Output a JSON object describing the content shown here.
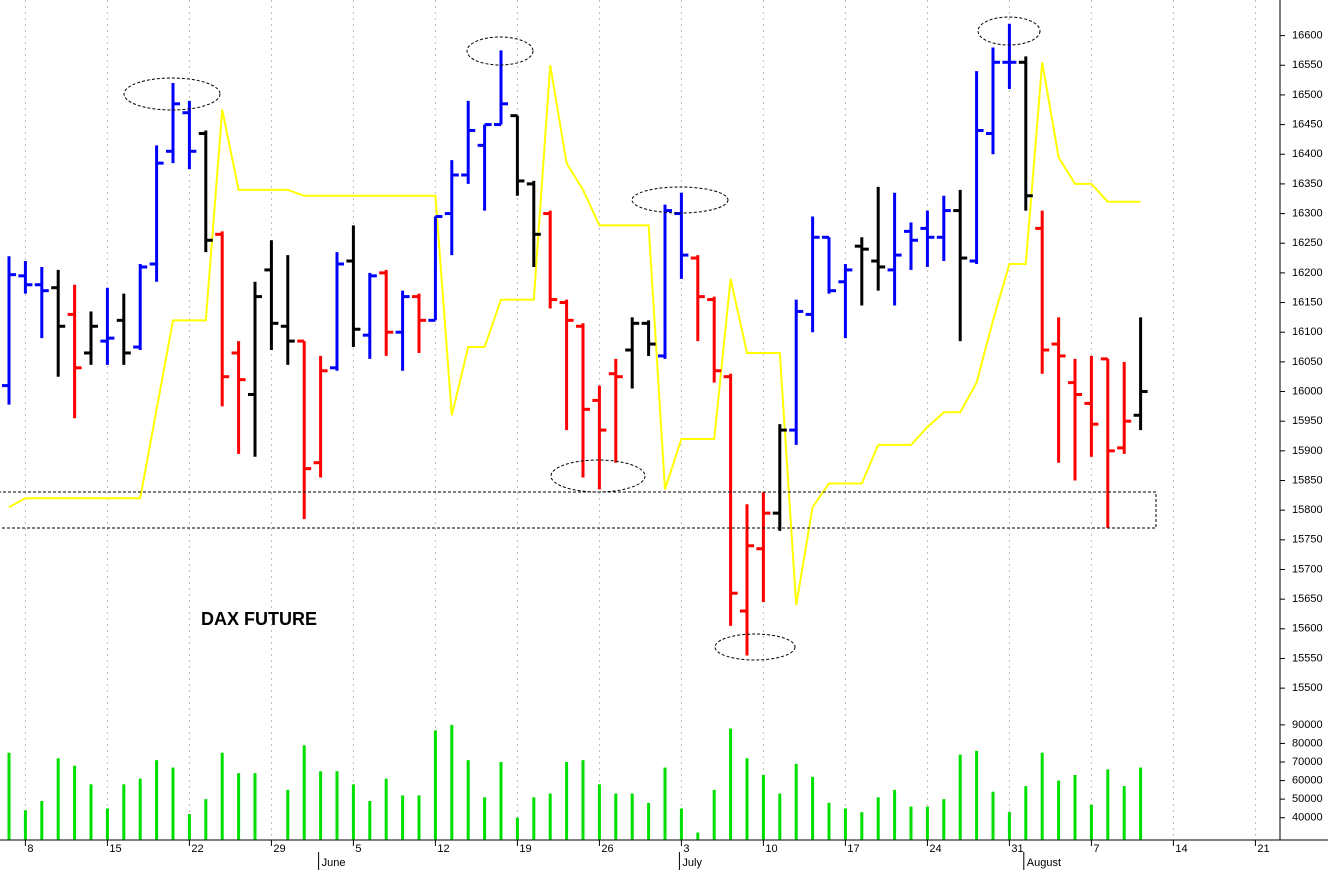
{
  "chart_data": [
    {
      "type": "ohlc",
      "annotation": "DAX FUTURE",
      "categories": [
        null,
        "8",
        null,
        null,
        null,
        null,
        "15",
        null,
        null,
        null,
        null,
        "22",
        null,
        null,
        null,
        null,
        "29",
        null,
        null,
        null,
        null,
        "5",
        null,
        null,
        null,
        null,
        "12",
        null,
        null,
        null,
        null,
        "19",
        null,
        null,
        null,
        null,
        "26",
        null,
        null,
        null,
        null,
        "3",
        null,
        null,
        null,
        null,
        "10",
        null,
        null,
        null,
        null,
        "17",
        null,
        null,
        null,
        null,
        "24",
        null,
        null,
        null,
        null,
        "31",
        null,
        null,
        null,
        null,
        "7",
        null,
        null,
        null,
        null,
        "14",
        null,
        null,
        null,
        null,
        "21"
      ],
      "month_labels": [
        null,
        null,
        null,
        null,
        null,
        null,
        null,
        null,
        null,
        null,
        null,
        null,
        null,
        null,
        null,
        null,
        null,
        null,
        null,
        "June",
        null,
        null,
        null,
        null,
        null,
        null,
        null,
        null,
        null,
        null,
        null,
        null,
        null,
        null,
        null,
        null,
        null,
        null,
        null,
        null,
        null,
        "July",
        null,
        null,
        null,
        null,
        null,
        null,
        null,
        null,
        null,
        null,
        null,
        null,
        null,
        null,
        null,
        null,
        null,
        null,
        null,
        null,
        "August",
        null,
        null,
        null,
        null,
        null,
        null,
        null,
        null,
        null,
        null,
        null,
        null,
        null,
        null
      ],
      "open": [
        16010,
        16195,
        16180,
        16175,
        16130,
        16065,
        16085,
        16120,
        16075,
        16215,
        16405,
        16470,
        16435,
        16265,
        16065,
        15995,
        16205,
        16110,
        16085,
        15880,
        16040,
        16220,
        16095,
        16200,
        16100,
        16160,
        16120,
        16300,
        16365,
        16415,
        16450,
        16465,
        16350,
        16300,
        16150,
        16110,
        15985,
        16030,
        16070,
        16115,
        16060,
        16300,
        16225,
        16155,
        16025,
        15630,
        15735,
        15795,
        15935,
        16130,
        16260,
        16185,
        16245,
        16220,
        16205,
        16270,
        16275,
        16260,
        16305,
        16220,
        16435,
        16555,
        16555,
        16275,
        16080,
        16015,
        15980,
        16055,
        15905,
        15960,
        null,
        null,
        null,
        null,
        null,
        null,
        null
      ],
      "high": [
        16228,
        16220,
        16210,
        16205,
        16180,
        16135,
        16175,
        16165,
        16215,
        16415,
        16520,
        16490,
        16440,
        16270,
        16085,
        16185,
        16255,
        16230,
        16085,
        16060,
        16235,
        16280,
        16200,
        16205,
        16170,
        16165,
        16295,
        16390,
        16490,
        16450,
        16575,
        16465,
        16355,
        16305,
        16155,
        16115,
        16010,
        16055,
        16125,
        16120,
        16315,
        16335,
        16230,
        16160,
        16030,
        15810,
        15830,
        15945,
        16155,
        16295,
        16260,
        16215,
        16260,
        16345,
        16335,
        16285,
        16305,
        16330,
        16340,
        16540,
        16580,
        16620,
        16565,
        16305,
        16125,
        16055,
        16060,
        16055,
        16050,
        16125,
        null,
        null,
        null,
        null,
        null,
        null,
        null
      ],
      "low": [
        15978,
        16165,
        16090,
        16025,
        15955,
        16045,
        16045,
        16045,
        16070,
        16185,
        16385,
        16375,
        16235,
        15975,
        15895,
        15890,
        16070,
        16045,
        15785,
        15855,
        16035,
        16075,
        16055,
        16060,
        16035,
        16065,
        16120,
        16230,
        16350,
        16305,
        16450,
        16330,
        16210,
        16140,
        15935,
        15855,
        15835,
        15880,
        16005,
        16060,
        16055,
        16190,
        16085,
        16015,
        15605,
        15555,
        15645,
        15765,
        15910,
        16100,
        16165,
        16090,
        16145,
        16170,
        16145,
        16205,
        16210,
        16220,
        16085,
        16215,
        16400,
        16510,
        16305,
        16030,
        15880,
        15850,
        15890,
        15770,
        15895,
        15935,
        null,
        null,
        null,
        null,
        null,
        null,
        null
      ],
      "close": [
        16197,
        16180,
        16170,
        16110,
        16040,
        16110,
        16090,
        16065,
        16210,
        16385,
        16485,
        16405,
        16255,
        16025,
        16020,
        16160,
        16115,
        16085,
        15870,
        16035,
        16215,
        16105,
        16195,
        16100,
        16160,
        16120,
        16295,
        16365,
        16440,
        16450,
        16485,
        16355,
        16265,
        16155,
        16120,
        15970,
        15935,
        16025,
        16115,
        16080,
        16305,
        16230,
        16160,
        16035,
        15660,
        15740,
        15795,
        15935,
        16135,
        16260,
        16170,
        16205,
        16240,
        16210,
        16230,
        16255,
        16260,
        16305,
        16225,
        16440,
        16555,
        16555,
        16330,
        16070,
        16060,
        15995,
        15945,
        15900,
        15950,
        16000,
        null,
        null,
        null,
        null,
        null,
        null,
        null
      ],
      "bar_colors": [
        "#0000ff",
        "#0000ff",
        "#0000ff",
        "#000000",
        "#ff0000",
        "#000000",
        "#0000ff",
        "#000000",
        "#0000ff",
        "#0000ff",
        "#0000ff",
        "#0000ff",
        "#000000",
        "#ff0000",
        "#ff0000",
        "#000000",
        "#000000",
        "#000000",
        "#ff0000",
        "#ff0000",
        "#0000ff",
        "#000000",
        "#0000ff",
        "#ff0000",
        "#0000ff",
        "#ff0000",
        "#0000ff",
        "#0000ff",
        "#0000ff",
        "#0000ff",
        "#0000ff",
        "#000000",
        "#000000",
        "#ff0000",
        "#ff0000",
        "#ff0000",
        "#ff0000",
        "#ff0000",
        "#000000",
        "#000000",
        "#0000ff",
        "#0000ff",
        "#ff0000",
        "#ff0000",
        "#ff0000",
        "#ff0000",
        "#ff0000",
        "#000000",
        "#0000ff",
        "#0000ff",
        "#0000ff",
        "#0000ff",
        "#000000",
        "#000000",
        "#0000ff",
        "#0000ff",
        "#0000ff",
        "#0000ff",
        "#000000",
        "#0000ff",
        "#0000ff",
        "#0000ff",
        "#000000",
        "#ff0000",
        "#ff0000",
        "#ff0000",
        "#ff0000",
        "#ff0000",
        "#ff0000",
        "#000000",
        null,
        null,
        null,
        null,
        null,
        null,
        null
      ],
      "line_values": [
        15805,
        15820,
        15820,
        15820,
        15820,
        15820,
        15820,
        15820,
        15820,
        15970,
        16120,
        16120,
        16120,
        16475,
        16340,
        16340,
        16340,
        16340,
        16330,
        16330,
        16330,
        16330,
        16330,
        16330,
        16330,
        16330,
        16330,
        15960,
        16075,
        16075,
        16155,
        16155,
        16155,
        16550,
        16385,
        16340,
        16280,
        16280,
        16280,
        16280,
        15835,
        15920,
        15920,
        15920,
        16190,
        16065,
        16065,
        16065,
        15640,
        15805,
        15845,
        15845,
        15845,
        15910,
        15910,
        15910,
        15940,
        15965,
        15965,
        16015,
        16120,
        16215,
        16215,
        16555,
        16395,
        16350,
        16350,
        16320,
        16320,
        16320,
        null,
        null,
        null,
        null,
        null,
        null,
        null
      ],
      "line_color": "#ffff00",
      "ylim": [
        15480,
        16660
      ],
      "yticks": [
        15500,
        15550,
        15600,
        15650,
        15700,
        15750,
        15800,
        15850,
        15900,
        15950,
        16000,
        16050,
        16100,
        16150,
        16200,
        16250,
        16300,
        16350,
        16400,
        16450,
        16500,
        16550,
        16600
      ]
    },
    {
      "type": "bar",
      "values": [
        75000,
        44000,
        49000,
        72000,
        68000,
        58000,
        45000,
        58000,
        61000,
        71000,
        67000,
        42000,
        50000,
        75000,
        64000,
        64000,
        null,
        55000,
        79000,
        65000,
        65000,
        58000,
        49000,
        61000,
        52000,
        52000,
        87000,
        90000,
        71000,
        51000,
        70000,
        40000,
        51000,
        53000,
        70000,
        71000,
        58000,
        53000,
        53000,
        48000,
        67000,
        45000,
        32000,
        55000,
        88000,
        72000,
        63000,
        53000,
        69000,
        62000,
        48000,
        45000,
        43000,
        51000,
        55000,
        46000,
        46000,
        50000,
        74000,
        76000,
        54000,
        43000,
        57000,
        75000,
        60000,
        63000,
        47000,
        66000,
        57000,
        67000,
        null,
        null,
        null,
        null,
        null,
        null,
        null
      ],
      "color": "#00e000",
      "ylim": [
        28000,
        98000
      ],
      "yticks": [
        40000,
        50000,
        60000,
        70000,
        80000,
        90000
      ]
    }
  ]
}
